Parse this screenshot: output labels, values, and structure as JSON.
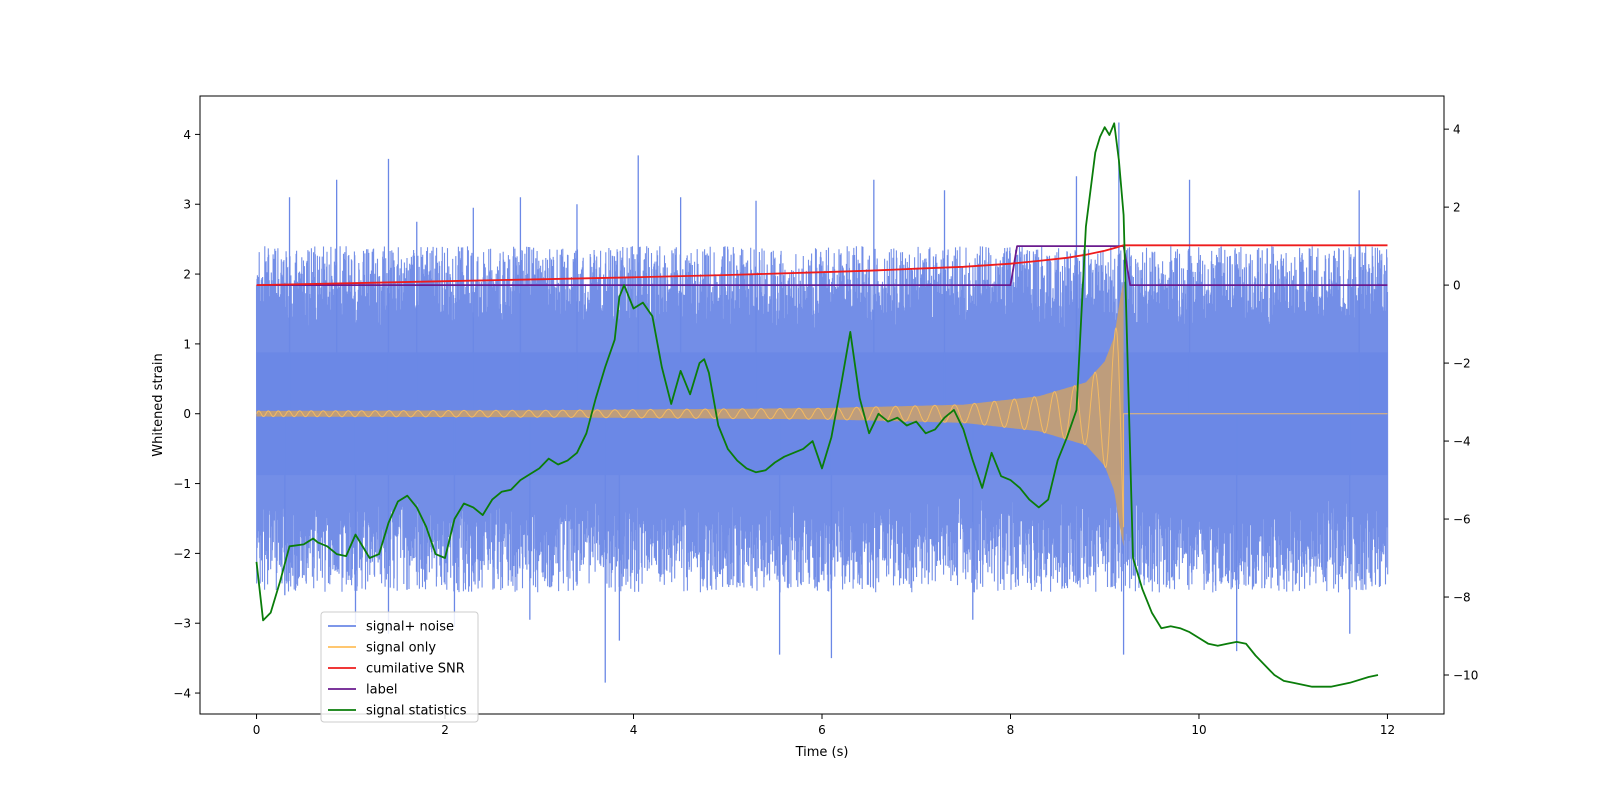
{
  "chart_data": {
    "type": "line",
    "title": "",
    "xlabel": "Time (s)",
    "ylabel": "Whitened strain",
    "ylabel_right": "",
    "xlim": [
      -0.6,
      12.6
    ],
    "ylim": [
      -4.3,
      4.55
    ],
    "ylim_right": [
      -11.0,
      4.85
    ],
    "xticks": [
      0,
      2,
      4,
      6,
      8,
      10,
      12
    ],
    "yticks": [
      -4,
      -3,
      -2,
      -1,
      0,
      1,
      2,
      3,
      4
    ],
    "yticks_right": [
      -10,
      -8,
      -6,
      -4,
      -2,
      0,
      2,
      4
    ],
    "legend_position": "lower-left",
    "series": [
      {
        "name": "signal+ noise",
        "color": "#6b88e6",
        "axis": "left",
        "style": "noise band",
        "t_range": [
          0,
          12
        ],
        "band": [
          -1.6,
          1.6
        ],
        "spikes": [
          {
            "t": 0.35,
            "v": 3.1
          },
          {
            "t": 0.85,
            "v": 3.35
          },
          {
            "t": 1.4,
            "v": 3.65
          },
          {
            "t": 1.7,
            "v": 2.75
          },
          {
            "t": 2.3,
            "v": 2.95
          },
          {
            "t": 2.8,
            "v": 3.1
          },
          {
            "t": 3.4,
            "v": 3.0
          },
          {
            "t": 4.05,
            "v": 3.7
          },
          {
            "t": 4.5,
            "v": 3.1
          },
          {
            "t": 5.3,
            "v": 3.05
          },
          {
            "t": 6.55,
            "v": 3.35
          },
          {
            "t": 7.3,
            "v": 3.2
          },
          {
            "t": 8.7,
            "v": 3.4
          },
          {
            "t": 9.15,
            "v": 4.17
          },
          {
            "t": 9.9,
            "v": 3.35
          },
          {
            "t": 11.7,
            "v": 3.2
          },
          {
            "t": 0.3,
            "v": -2.6
          },
          {
            "t": 1.05,
            "v": -3.0
          },
          {
            "t": 1.4,
            "v": -3.15
          },
          {
            "t": 2.1,
            "v": -3.05
          },
          {
            "t": 2.9,
            "v": -2.95
          },
          {
            "t": 3.7,
            "v": -3.85
          },
          {
            "t": 3.85,
            "v": -3.25
          },
          {
            "t": 5.55,
            "v": -3.45
          },
          {
            "t": 6.1,
            "v": -3.5
          },
          {
            "t": 7.6,
            "v": -2.95
          },
          {
            "t": 9.2,
            "v": -3.45
          },
          {
            "t": 10.4,
            "v": -3.4
          },
          {
            "t": 11.6,
            "v": -3.15
          }
        ]
      },
      {
        "name": "signal only",
        "color": "#ffbf5c",
        "axis": "left",
        "style": "chirp",
        "t_range": [
          0,
          12
        ],
        "merger_time": 9.2,
        "envelope": [
          {
            "t": 0,
            "a": 0.04
          },
          {
            "t": 3,
            "a": 0.05
          },
          {
            "t": 6,
            "a": 0.08
          },
          {
            "t": 7.5,
            "a": 0.13
          },
          {
            "t": 8.3,
            "a": 0.25
          },
          {
            "t": 8.8,
            "a": 0.45
          },
          {
            "t": 9.0,
            "a": 0.75
          },
          {
            "t": 9.1,
            "a": 1.1
          },
          {
            "t": 9.17,
            "a": 1.7
          },
          {
            "t": 9.2,
            "a": 1.9
          }
        ]
      },
      {
        "name": "cumilative SNR",
        "color": "#ee1c1c",
        "axis": "right",
        "t": [
          0,
          1,
          2,
          3,
          4,
          5,
          6,
          6.5,
          7,
          7.5,
          8,
          8.3,
          8.6,
          8.8,
          9.0,
          9.1,
          9.2,
          12
        ],
        "values": [
          0,
          0.05,
          0.1,
          0.15,
          0.2,
          0.26,
          0.33,
          0.37,
          0.42,
          0.47,
          0.55,
          0.62,
          0.7,
          0.78,
          0.88,
          0.95,
          1.02,
          1.02
        ]
      },
      {
        "name": "label",
        "color": "#6a1a8e",
        "axis": "right",
        "t": [
          0,
          8.0,
          8.07,
          9.2,
          9.27,
          12
        ],
        "values": [
          0,
          0,
          1,
          1,
          0,
          0
        ]
      },
      {
        "name": "signal statistics",
        "color": "#0a7d0a",
        "axis": "right",
        "t": [
          0,
          0.07,
          0.15,
          0.25,
          0.35,
          0.5,
          0.6,
          0.65,
          0.75,
          0.85,
          0.95,
          1.05,
          1.1,
          1.2,
          1.3,
          1.4,
          1.5,
          1.6,
          1.7,
          1.8,
          1.9,
          1.95,
          2.0,
          2.1,
          2.2,
          2.3,
          2.4,
          2.5,
          2.6,
          2.7,
          2.8,
          2.9,
          3.0,
          3.1,
          3.2,
          3.3,
          3.4,
          3.5,
          3.6,
          3.7,
          3.8,
          3.85,
          3.9,
          4.0,
          4.1,
          4.2,
          4.3,
          4.4,
          4.5,
          4.6,
          4.7,
          4.75,
          4.8,
          4.9,
          5.0,
          5.1,
          5.2,
          5.3,
          5.4,
          5.5,
          5.6,
          5.7,
          5.8,
          5.9,
          6.0,
          6.1,
          6.2,
          6.3,
          6.4,
          6.5,
          6.6,
          6.7,
          6.8,
          6.9,
          7.0,
          7.1,
          7.2,
          7.3,
          7.4,
          7.5,
          7.6,
          7.7,
          7.8,
          7.9,
          8.0,
          8.1,
          8.2,
          8.3,
          8.4,
          8.5,
          8.6,
          8.7,
          8.8,
          8.9,
          8.95,
          9.0,
          9.05,
          9.1,
          9.15,
          9.2,
          9.3,
          9.4,
          9.5,
          9.6,
          9.7,
          9.8,
          9.9,
          10.0,
          10.1,
          10.2,
          10.3,
          10.4,
          10.5,
          10.6,
          10.7,
          10.8,
          10.9,
          11.0,
          11.2,
          11.4,
          11.6,
          11.8,
          11.9
        ],
        "values": [
          -7.1,
          -8.6,
          -8.4,
          -7.6,
          -6.7,
          -6.65,
          -6.5,
          -6.6,
          -6.7,
          -6.9,
          -6.95,
          -6.4,
          -6.6,
          -7.0,
          -6.9,
          -6.1,
          -5.55,
          -5.4,
          -5.7,
          -6.2,
          -6.9,
          -6.95,
          -7.0,
          -6.0,
          -5.6,
          -5.7,
          -5.9,
          -5.5,
          -5.3,
          -5.25,
          -5.0,
          -4.85,
          -4.7,
          -4.45,
          -4.6,
          -4.5,
          -4.3,
          -3.8,
          -2.9,
          -2.1,
          -1.4,
          -0.3,
          0.0,
          -0.6,
          -0.45,
          -0.8,
          -2.1,
          -3.05,
          -2.2,
          -2.8,
          -2.0,
          -1.9,
          -2.25,
          -3.6,
          -4.2,
          -4.5,
          -4.7,
          -4.8,
          -4.75,
          -4.55,
          -4.4,
          -4.3,
          -4.2,
          -4.0,
          -4.7,
          -3.9,
          -2.6,
          -1.2,
          -2.9,
          -3.8,
          -3.3,
          -3.5,
          -3.4,
          -3.6,
          -3.5,
          -3.8,
          -3.7,
          -3.4,
          -3.2,
          -3.7,
          -4.5,
          -5.2,
          -4.3,
          -4.9,
          -5.0,
          -5.2,
          -5.5,
          -5.7,
          -5.5,
          -4.5,
          -3.9,
          -3.2,
          1.5,
          3.4,
          3.8,
          4.05,
          3.85,
          4.15,
          3.2,
          1.8,
          -7.0,
          -7.8,
          -8.4,
          -8.8,
          -8.75,
          -8.8,
          -8.9,
          -9.05,
          -9.2,
          -9.25,
          -9.2,
          -9.15,
          -9.2,
          -9.5,
          -9.75,
          -10.0,
          -10.15,
          -10.2,
          -10.3,
          -10.3,
          -10.2,
          -10.05,
          -10.0
        ]
      }
    ]
  }
}
